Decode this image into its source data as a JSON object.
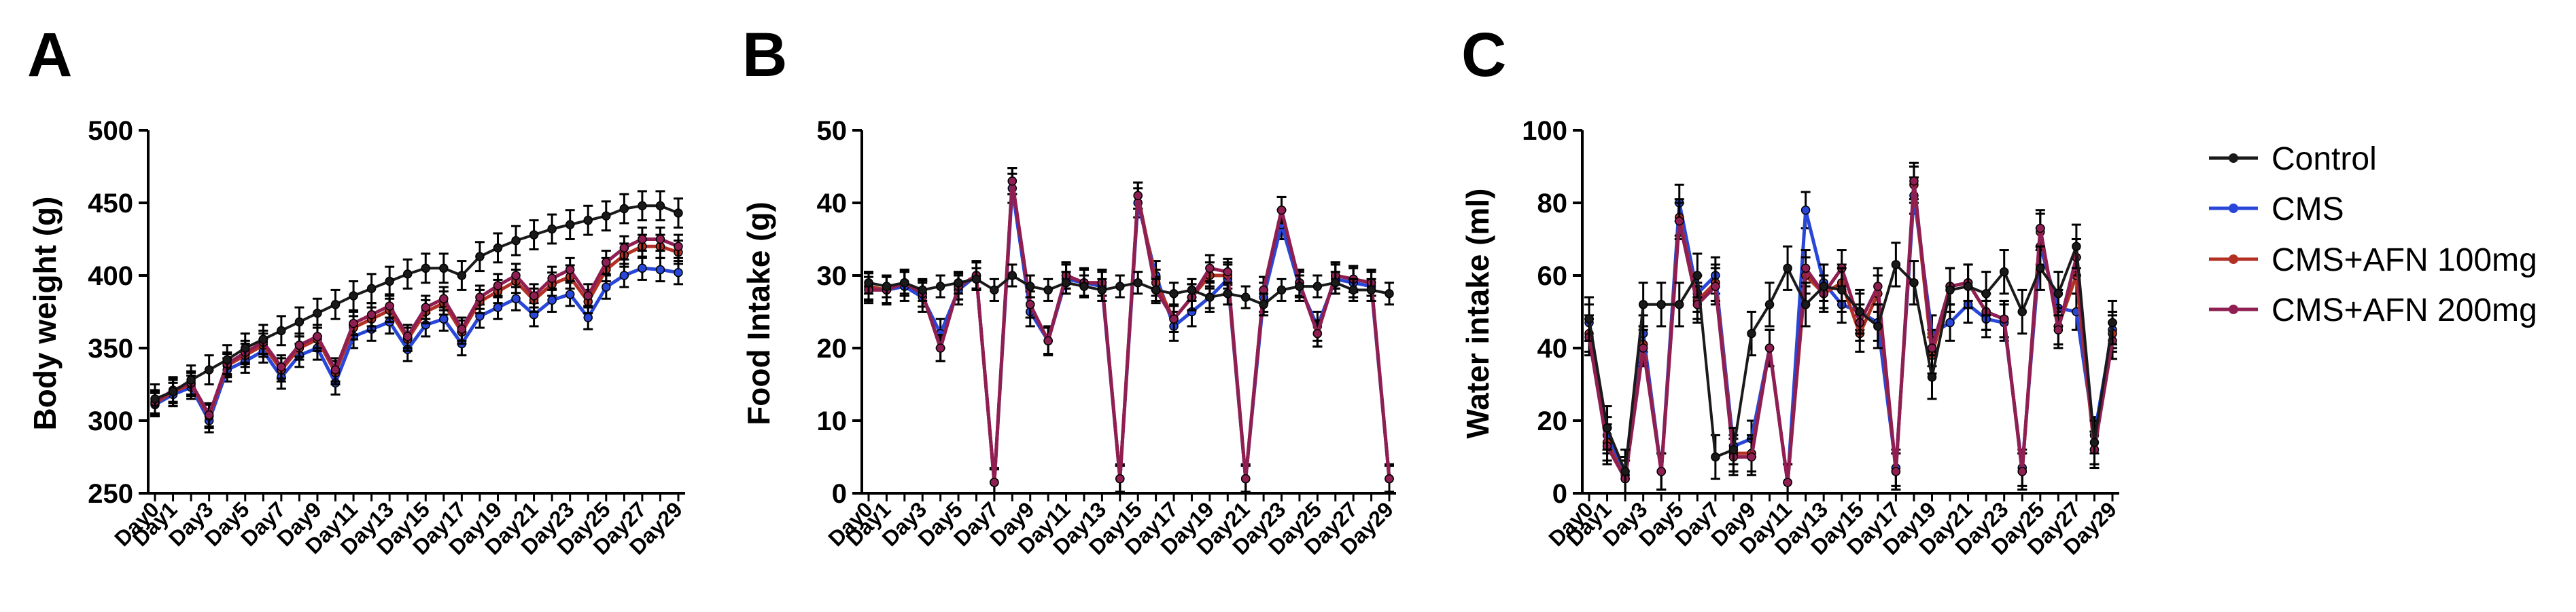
{
  "panel_letters": [
    "A",
    "B",
    "C"
  ],
  "colors": {
    "Control": "#1a1a1a",
    "CMS": "#2846d8",
    "CMS+AFN 100mg": "#b23024",
    "CMS+AFN 200mg": "#8f1f52"
  },
  "legend": [
    "Control",
    "CMS",
    "CMS+AFN 100mg",
    "CMS+AFN 200mg"
  ],
  "chart_data": [
    {
      "type": "line",
      "title": "A",
      "ylabel": "Body weight (g)",
      "ylim": [
        250,
        500
      ],
      "yticks": [
        250,
        300,
        350,
        400,
        450,
        500
      ],
      "x": [
        "Day0",
        "Day1",
        "Day2",
        "Day3",
        "Day4",
        "Day5",
        "Day6",
        "Day7",
        "Day8",
        "Day9",
        "Day10",
        "Day11",
        "Day12",
        "Day13",
        "Day14",
        "Day15",
        "Day16",
        "Day17",
        "Day18",
        "Day19",
        "Day20",
        "Day21",
        "Day22",
        "Day23",
        "Day24",
        "Day25",
        "Day26",
        "Day27",
        "Day28",
        "Day29"
      ],
      "xtick_labels": [
        "Day0",
        "Day1",
        "Day3",
        "Day5",
        "Day7",
        "Day9",
        "Day11",
        "Day13",
        "Day15",
        "Day17",
        "Day19",
        "Day21",
        "Day23",
        "Day25",
        "Day27",
        "Day29"
      ],
      "series": [
        {
          "name": "Control",
          "values": [
            315,
            320,
            328,
            335,
            342,
            350,
            356,
            362,
            368,
            374,
            380,
            386,
            391,
            396,
            401,
            405,
            405,
            400,
            413,
            419,
            424,
            428,
            432,
            435,
            438,
            441,
            446,
            448,
            448,
            443
          ],
          "err": 10
        },
        {
          "name": "CMS",
          "values": [
            311,
            318,
            323,
            300,
            335,
            341,
            348,
            330,
            345,
            350,
            326,
            358,
            363,
            368,
            349,
            366,
            370,
            353,
            372,
            378,
            384,
            373,
            383,
            387,
            371,
            392,
            400,
            405,
            404,
            402
          ],
          "err": 8
        },
        {
          "name": "CMS+AFN 100mg",
          "values": [
            312,
            320,
            325,
            303,
            338,
            345,
            352,
            335,
            350,
            356,
            333,
            364,
            370,
            376,
            356,
            375,
            381,
            361,
            382,
            389,
            396,
            383,
            394,
            399,
            382,
            404,
            414,
            420,
            420,
            416
          ],
          "err": 8
        },
        {
          "name": "CMS+AFN 200mg",
          "values": [
            313,
            321,
            326,
            304,
            339,
            347,
            354,
            337,
            352,
            358,
            335,
            367,
            373,
            379,
            358,
            378,
            384,
            363,
            385,
            393,
            400,
            386,
            398,
            404,
            386,
            409,
            419,
            425,
            425,
            420
          ],
          "err": 8
        }
      ]
    },
    {
      "type": "line",
      "title": "B",
      "ylabel": "Food Intake (g)",
      "ylim": [
        0,
        50
      ],
      "yticks": [
        0,
        10,
        20,
        30,
        40,
        50
      ],
      "x": [
        "Day0",
        "Day1",
        "Day2",
        "Day3",
        "Day4",
        "Day5",
        "Day6",
        "Day7",
        "Day8",
        "Day9",
        "Day10",
        "Day11",
        "Day12",
        "Day13",
        "Day14",
        "Day15",
        "Day16",
        "Day17",
        "Day18",
        "Day19",
        "Day20",
        "Day21",
        "Day22",
        "Day23",
        "Day24",
        "Day25",
        "Day26",
        "Day27",
        "Day28",
        "Day29"
      ],
      "xtick_labels": [
        "Day0",
        "Day1",
        "Day3",
        "Day5",
        "Day7",
        "Day9",
        "Day11",
        "Day13",
        "Day15",
        "Day17",
        "Day19",
        "Day21",
        "Day23",
        "Day25",
        "Day27",
        "Day29"
      ],
      "series": [
        {
          "name": "Control",
          "values": [
            29,
            28.5,
            29,
            28,
            28.5,
            29,
            29.5,
            28,
            30,
            28.5,
            28,
            29,
            28.5,
            28,
            28.5,
            29,
            28,
            27.5,
            28,
            27,
            27.5,
            27,
            26,
            28,
            28.5,
            28.5,
            29,
            28,
            28,
            27.5
          ],
          "err": 1.5
        },
        {
          "name": "CMS",
          "values": [
            28.5,
            28,
            28.5,
            27,
            22,
            28,
            30,
            1.5,
            42,
            25,
            21,
            29.5,
            29,
            28.5,
            2,
            40,
            30,
            23,
            25,
            27,
            29.5,
            2,
            27,
            37,
            28.5,
            23,
            29.5,
            29,
            28.5,
            2
          ],
          "err": 2
        },
        {
          "name": "CMS+AFN 100mg",
          "values": [
            28.5,
            28,
            29,
            27.5,
            20,
            28.5,
            30,
            1.5,
            43,
            26,
            21,
            30,
            29,
            29,
            2,
            41,
            29,
            24,
            27,
            30,
            30,
            2,
            28,
            39,
            29,
            22,
            30,
            29.5,
            29,
            2
          ],
          "err": 1.8
        },
        {
          "name": "CMS+AFN 200mg",
          "values": [
            28,
            28,
            29,
            27.5,
            20,
            28.5,
            30,
            1.5,
            43,
            26,
            21,
            30,
            29,
            29,
            2,
            41,
            28,
            24,
            27,
            31,
            30.5,
            2,
            28,
            39,
            29,
            22,
            30,
            29.5,
            29,
            2
          ],
          "err": 1.8
        }
      ]
    },
    {
      "type": "line",
      "title": "C",
      "ylabel": "Water intake (ml)",
      "ylim": [
        0,
        100
      ],
      "yticks": [
        0,
        20,
        40,
        60,
        80,
        100
      ],
      "x": [
        "Day0",
        "Day1",
        "Day2",
        "Day3",
        "Day4",
        "Day5",
        "Day6",
        "Day7",
        "Day8",
        "Day9",
        "Day10",
        "Day11",
        "Day12",
        "Day13",
        "Day14",
        "Day15",
        "Day16",
        "Day17",
        "Day18",
        "Day19",
        "Day20",
        "Day21",
        "Day22",
        "Day23",
        "Day24",
        "Day25",
        "Day26",
        "Day27",
        "Day28",
        "Day29"
      ],
      "xtick_labels": [
        "Day0",
        "Day1",
        "Day3",
        "Day5",
        "Day7",
        "Day9",
        "Day11",
        "Day13",
        "Day15",
        "Day17",
        "Day19",
        "Day21",
        "Day23",
        "Day25",
        "Day27",
        "Day29"
      ],
      "series": [
        {
          "name": "Control",
          "values": [
            48,
            18,
            6,
            52,
            52,
            52,
            60,
            10,
            12,
            44,
            52,
            62,
            52,
            57,
            56,
            50,
            46,
            63,
            58,
            32,
            56,
            57,
            55,
            61,
            50,
            62,
            55,
            68,
            14,
            47
          ],
          "err": 6
        },
        {
          "name": "CMS",
          "values": [
            47,
            16,
            5,
            44,
            6,
            80,
            55,
            60,
            13,
            15,
            40,
            3,
            78,
            58,
            52,
            50,
            47,
            7,
            82,
            44,
            47,
            52,
            48,
            47,
            7,
            68,
            51,
            50,
            16,
            45
          ],
          "err": 5
        },
        {
          "name": "CMS+AFN 100mg",
          "values": [
            44,
            14,
            4,
            41,
            6,
            76,
            53,
            58,
            11,
            11,
            40,
            3,
            60,
            55,
            58,
            44,
            55,
            6,
            85,
            38,
            57,
            58,
            50,
            48,
            6,
            72,
            46,
            60,
            12,
            44
          ],
          "err": 5
        },
        {
          "name": "CMS+AFN 200mg",
          "values": [
            43,
            13,
            4,
            40,
            6,
            75,
            52,
            57,
            10,
            10,
            40,
            3,
            62,
            55,
            62,
            47,
            57,
            6,
            86,
            40,
            57,
            58,
            50,
            48,
            6,
            73,
            45,
            65,
            12,
            42
          ],
          "err": 5
        }
      ]
    }
  ]
}
